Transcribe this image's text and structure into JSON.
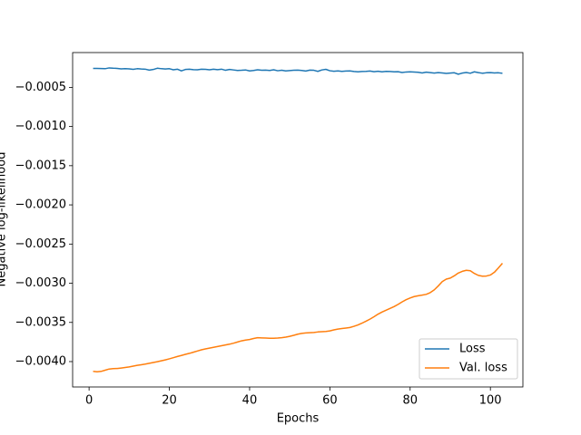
{
  "chart_data": {
    "type": "line",
    "xlabel": "Epochs",
    "ylabel": "Negative log-likelihood",
    "x": [
      1,
      2,
      3,
      4,
      5,
      6,
      7,
      8,
      9,
      10,
      11,
      12,
      13,
      14,
      15,
      16,
      17,
      18,
      19,
      20,
      21,
      22,
      23,
      24,
      25,
      26,
      27,
      28,
      29,
      30,
      31,
      32,
      33,
      34,
      35,
      36,
      37,
      38,
      39,
      40,
      41,
      42,
      43,
      44,
      45,
      46,
      47,
      48,
      49,
      50,
      51,
      52,
      53,
      54,
      55,
      56,
      57,
      58,
      59,
      60,
      61,
      62,
      63,
      64,
      65,
      66,
      67,
      68,
      69,
      70,
      71,
      72,
      73,
      74,
      75,
      76,
      77,
      78,
      79,
      80,
      81,
      82,
      83,
      84,
      85,
      86,
      87,
      88,
      89,
      90,
      91,
      92,
      93,
      94,
      95,
      96,
      97,
      98,
      99,
      100,
      101,
      102,
      103
    ],
    "series": [
      {
        "name": "Loss",
        "color": "#1f77b4",
        "values": [
          -0.000258,
          -0.000259,
          -0.00026,
          -0.000262,
          -0.000252,
          -0.000256,
          -0.000258,
          -0.000264,
          -0.000262,
          -0.000264,
          -0.00027,
          -0.000262,
          -0.000266,
          -0.000268,
          -0.00028,
          -0.000272,
          -0.000256,
          -0.000262,
          -0.000266,
          -0.000262,
          -0.000276,
          -0.000268,
          -0.00029,
          -0.000272,
          -0.000268,
          -0.000274,
          -0.000276,
          -0.000268,
          -0.00027,
          -0.000276,
          -0.000268,
          -0.000274,
          -0.000268,
          -0.000282,
          -0.000272,
          -0.000278,
          -0.000284,
          -0.000282,
          -0.000278,
          -0.00029,
          -0.000284,
          -0.000276,
          -0.000282,
          -0.00028,
          -0.000284,
          -0.000276,
          -0.000288,
          -0.000282,
          -0.00029,
          -0.000286,
          -0.000282,
          -0.00028,
          -0.000284,
          -0.000292,
          -0.00028,
          -0.000282,
          -0.000296,
          -0.000278,
          -0.00027,
          -0.000288,
          -0.000294,
          -0.00029,
          -0.000296,
          -0.000292,
          -0.00029,
          -0.000298,
          -0.000302,
          -0.000298,
          -0.000296,
          -0.000292,
          -0.0003,
          -0.000294,
          -0.000302,
          -0.000296,
          -0.000298,
          -0.000302,
          -0.0003,
          -0.00031,
          -0.000304,
          -0.000302,
          -0.000304,
          -0.000308,
          -0.000316,
          -0.000306,
          -0.000312,
          -0.000318,
          -0.000312,
          -0.000316,
          -0.000322,
          -0.000318,
          -0.000314,
          -0.000332,
          -0.000318,
          -0.00031,
          -0.00032,
          -0.000302,
          -0.000312,
          -0.00032,
          -0.000314,
          -0.000312,
          -0.000316,
          -0.000314,
          -0.00032
        ]
      },
      {
        "name": "Val. loss",
        "color": "#ff7f0e",
        "values": [
          -0.004125,
          -0.00413,
          -0.004125,
          -0.00411,
          -0.004095,
          -0.00409,
          -0.004088,
          -0.004082,
          -0.004075,
          -0.004068,
          -0.004058,
          -0.004048,
          -0.00404,
          -0.004032,
          -0.004022,
          -0.004012,
          -0.004002,
          -0.00399,
          -0.003978,
          -0.003965,
          -0.00395,
          -0.003935,
          -0.003922,
          -0.003908,
          -0.003895,
          -0.00388,
          -0.003865,
          -0.00385,
          -0.003838,
          -0.003828,
          -0.003818,
          -0.003808,
          -0.003798,
          -0.003788,
          -0.003778,
          -0.003765,
          -0.00375,
          -0.003735,
          -0.003725,
          -0.003718,
          -0.003705,
          -0.003695,
          -0.003698,
          -0.0037,
          -0.003702,
          -0.003702,
          -0.0037,
          -0.003695,
          -0.003688,
          -0.003678,
          -0.003665,
          -0.00365,
          -0.00364,
          -0.003635,
          -0.003632,
          -0.003628,
          -0.003622,
          -0.003618,
          -0.003615,
          -0.003608,
          -0.003595,
          -0.003585,
          -0.003578,
          -0.003572,
          -0.003565,
          -0.00355,
          -0.003532,
          -0.00351,
          -0.003485,
          -0.003458,
          -0.003428,
          -0.003395,
          -0.003368,
          -0.003345,
          -0.003322,
          -0.003298,
          -0.00327,
          -0.003238,
          -0.00321,
          -0.003188,
          -0.00317,
          -0.00316,
          -0.003152,
          -0.003142,
          -0.00312,
          -0.003085,
          -0.003035,
          -0.00298,
          -0.002948,
          -0.002935,
          -0.002905,
          -0.00287,
          -0.002848,
          -0.002835,
          -0.00284,
          -0.002875,
          -0.0029,
          -0.00291,
          -0.002908,
          -0.002895,
          -0.00286,
          -0.002805,
          -0.002745
        ]
      }
    ],
    "xlim": [
      -4.1,
      108.1
    ],
    "ylim": [
      -0.004324,
      -5.6e-05
    ],
    "xticks": [
      0,
      20,
      40,
      60,
      80,
      100
    ],
    "yticks": [
      {
        "value": -0.0005,
        "label": "−0.0005"
      },
      {
        "value": -0.001,
        "label": "−0.0010"
      },
      {
        "value": -0.0015,
        "label": "−0.0015"
      },
      {
        "value": -0.002,
        "label": "−0.0020"
      },
      {
        "value": -0.0025,
        "label": "−0.0025"
      },
      {
        "value": -0.003,
        "label": "−0.0030"
      },
      {
        "value": -0.0035,
        "label": "−0.0035"
      },
      {
        "value": -0.004,
        "label": "−0.0040"
      }
    ],
    "grid": false,
    "legend": "lower right"
  }
}
